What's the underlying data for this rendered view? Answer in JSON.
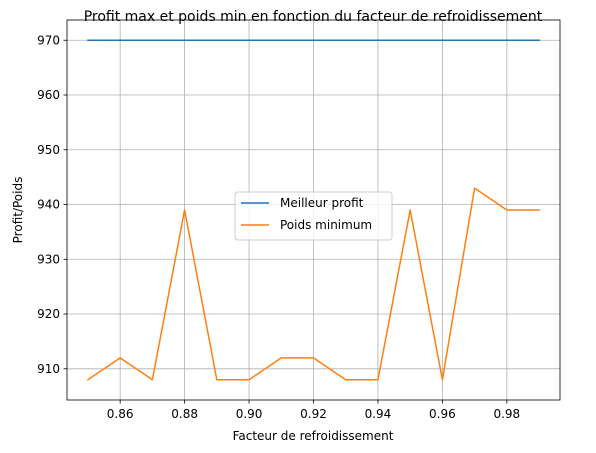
{
  "chart_data": {
    "type": "line",
    "title": "Profit max et poids min en fonction du facteur de refroidissement",
    "xlabel": "Facteur de refroidissement",
    "ylabel": "Profit/Poids",
    "xlim": [
      0.8435,
      0.9965
    ],
    "ylim": [
      904.3,
      973.7
    ],
    "xticks": [
      0.86,
      0.88,
      0.9,
      0.92,
      0.94,
      0.96,
      0.98
    ],
    "xtick_labels": [
      "0.86",
      "0.88",
      "0.90",
      "0.92",
      "0.94",
      "0.96",
      "0.98"
    ],
    "yticks": [
      910,
      920,
      930,
      940,
      950,
      960,
      970
    ],
    "ytick_labels": [
      "910",
      "920",
      "930",
      "940",
      "950",
      "960",
      "970"
    ],
    "grid": true,
    "legend_position": "center-right",
    "x": [
      0.85,
      0.86,
      0.87,
      0.88,
      0.89,
      0.9,
      0.91,
      0.92,
      0.93,
      0.94,
      0.95,
      0.96,
      0.97,
      0.98,
      0.99
    ],
    "series": [
      {
        "name": "Meilleur profit",
        "color": "#1f77b4",
        "values": [
          970,
          970,
          970,
          970,
          970,
          970,
          970,
          970,
          970,
          970,
          970,
          970,
          970,
          970,
          970
        ]
      },
      {
        "name": "Poids minimum",
        "color": "#ff7f0e",
        "values": [
          908,
          912,
          908,
          939,
          908,
          908,
          912,
          912,
          908,
          908,
          939,
          908,
          943,
          939,
          939
        ]
      }
    ]
  }
}
